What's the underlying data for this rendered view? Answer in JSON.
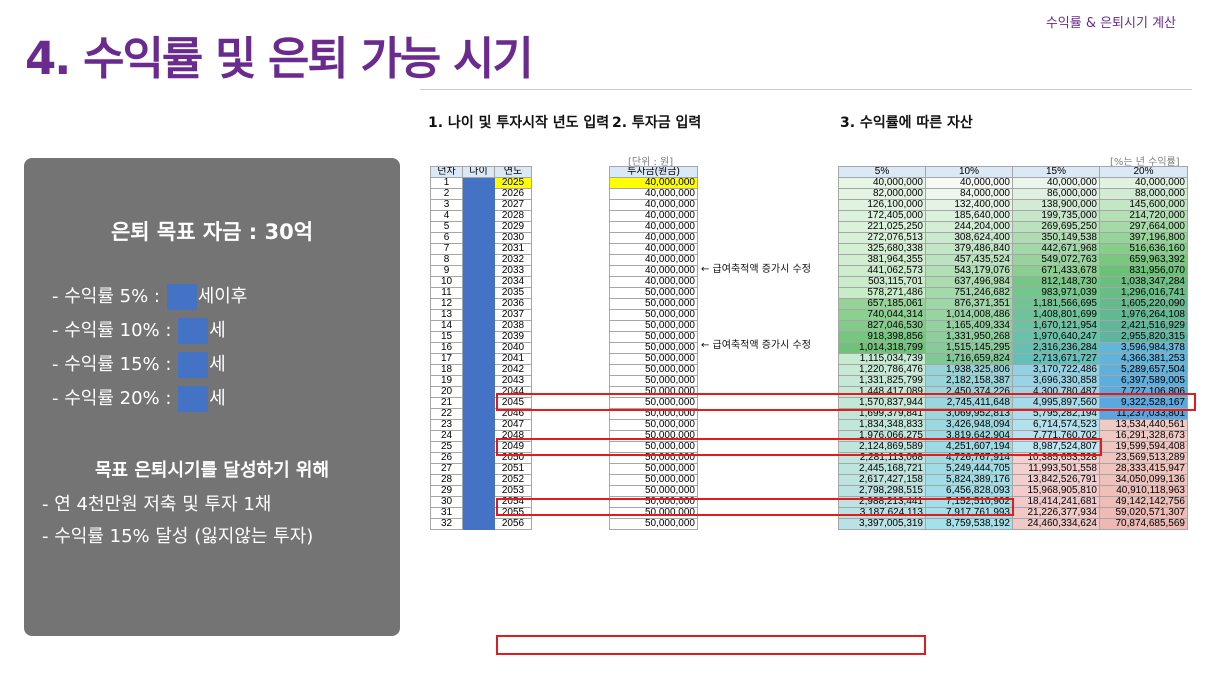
{
  "header": {
    "title": "4. 수익률 및 은퇴 가능 시기",
    "top_right": "수익률 & 은퇴시기 계산"
  },
  "panel": {
    "goal": "은퇴 목표 자금 : 30억",
    "rates": [
      {
        "prefix": "- 수익률  5% : ",
        "suffix": "세이후"
      },
      {
        "prefix": "- 수익률 10% : ",
        "suffix": "세"
      },
      {
        "prefix": "- 수익률 15% : ",
        "suffix": "세"
      },
      {
        "prefix": "- 수익률 20% : ",
        "suffix": "세"
      }
    ],
    "subtitle": "목표 은퇴시기를 달성하기 위해",
    "bullets": [
      "- 연 4천만원 저축 및 투자 1채",
      "- 수익률 15% 달성 (잃지않는 투자)"
    ]
  },
  "sections": {
    "s1": "1. 나이 및 투자시작 년도 입력",
    "s2": "2. 투자금 입력",
    "s3": "3. 수익률에 따른 자산"
  },
  "units": {
    "won": "[단위 : 원]",
    "rate": "[%는 년 수익률]"
  },
  "notes": [
    "← 급여축적액 증가시 수정",
    "← 급여축적액 증가시 수정"
  ],
  "table": {
    "headers_left": [
      "년차",
      "나이",
      "연도"
    ],
    "header_invest": "투자금(원금)",
    "headers_rates": [
      "5%",
      "10%",
      "15%",
      "20%"
    ],
    "rows": [
      [
        1,
        2025,
        "40,000,000",
        "40,000,000",
        "40,000,000",
        "40,000,000",
        "40,000,000"
      ],
      [
        2,
        2026,
        "40,000,000",
        "82,000,000",
        "84,000,000",
        "86,000,000",
        "88,000,000"
      ],
      [
        3,
        2027,
        "40,000,000",
        "126,100,000",
        "132,400,000",
        "138,900,000",
        "145,600,000"
      ],
      [
        4,
        2028,
        "40,000,000",
        "172,405,000",
        "185,640,000",
        "199,735,000",
        "214,720,000"
      ],
      [
        5,
        2029,
        "40,000,000",
        "221,025,250",
        "244,204,000",
        "269,695,250",
        "297,664,000"
      ],
      [
        6,
        2030,
        "40,000,000",
        "272,076,513",
        "308,624,400",
        "350,149,538",
        "397,196,800"
      ],
      [
        7,
        2031,
        "40,000,000",
        "325,680,338",
        "379,486,840",
        "442,671,968",
        "516,636,160"
      ],
      [
        8,
        2032,
        "40,000,000",
        "381,964,355",
        "457,435,524",
        "549,072,763",
        "659,963,392"
      ],
      [
        9,
        2033,
        "40,000,000",
        "441,062,573",
        "543,179,076",
        "671,433,678",
        "831,956,070"
      ],
      [
        10,
        2034,
        "40,000,000",
        "503,115,701",
        "637,496,984",
        "812,148,730",
        "1,038,347,284"
      ],
      [
        11,
        2035,
        "50,000,000",
        "578,271,486",
        "751,246,682",
        "983,971,039",
        "1,296,016,741"
      ],
      [
        12,
        2036,
        "50,000,000",
        "657,185,061",
        "876,371,351",
        "1,181,566,695",
        "1,605,220,090"
      ],
      [
        13,
        2037,
        "50,000,000",
        "740,044,314",
        "1,014,008,486",
        "1,408,801,699",
        "1,976,264,108"
      ],
      [
        14,
        2038,
        "50,000,000",
        "827,046,530",
        "1,165,409,334",
        "1,670,121,954",
        "2,421,516,929"
      ],
      [
        15,
        2039,
        "50,000,000",
        "918,398,856",
        "1,331,950,268",
        "1,970,640,247",
        "2,955,820,315"
      ],
      [
        16,
        2040,
        "50,000,000",
        "1,014,318,799",
        "1,515,145,295",
        "2,316,236,284",
        "3,596,984,378"
      ],
      [
        17,
        2041,
        "50,000,000",
        "1,115,034,739",
        "1,716,659,824",
        "2,713,671,727",
        "4,366,381,253"
      ],
      [
        18,
        2042,
        "50,000,000",
        "1,220,786,476",
        "1,938,325,806",
        "3,170,722,486",
        "5,289,657,504"
      ],
      [
        19,
        2043,
        "50,000,000",
        "1,331,825,799",
        "2,182,158,387",
        "3,696,330,858",
        "6,397,589,005"
      ],
      [
        20,
        2044,
        "50,000,000",
        "1,448,417,089",
        "2,450,374,226",
        "4,300,780,487",
        "7,727,106,806"
      ],
      [
        21,
        2045,
        "50,000,000",
        "1,570,837,944",
        "2,745,411,648",
        "4,995,897,560",
        "9,322,528,167"
      ],
      [
        22,
        2046,
        "50,000,000",
        "1,699,379,841",
        "3,069,952,813",
        "5,795,282,194",
        "11,237,033,801"
      ],
      [
        23,
        2047,
        "50,000,000",
        "1,834,348,833",
        "3,426,948,094",
        "6,714,574,523",
        "13,534,440,561"
      ],
      [
        24,
        2048,
        "50,000,000",
        "1,976,066,275",
        "3,819,642,904",
        "7,771,760,702",
        "16,291,328,673"
      ],
      [
        25,
        2049,
        "50,000,000",
        "2,124,869,589",
        "4,251,607,194",
        "8,987,524,807",
        "19,599,594,408"
      ],
      [
        26,
        2050,
        "50,000,000",
        "2,281,113,068",
        "4,726,767,914",
        "10,385,653,528",
        "23,569,513,289"
      ],
      [
        27,
        2051,
        "50,000,000",
        "2,445,168,721",
        "5,249,444,705",
        "11,993,501,558",
        "28,333,415,947"
      ],
      [
        28,
        2052,
        "50,000,000",
        "2,617,427,158",
        "5,824,389,176",
        "13,842,526,791",
        "34,050,099,136"
      ],
      [
        29,
        2053,
        "50,000,000",
        "2,798,298,515",
        "6,456,828,093",
        "15,968,905,810",
        "40,910,118,963"
      ],
      [
        30,
        2054,
        "50,000,000",
        "2,988,213,441",
        "7,152,510,902",
        "18,414,241,681",
        "49,142,142,756"
      ],
      [
        31,
        2055,
        "50,000,000",
        "3,187,624,113",
        "7,917,761,993",
        "21,226,377,934",
        "59,020,571,307"
      ],
      [
        32,
        2056,
        "50,000,000",
        "3,397,005,319",
        "8,759,538,192",
        "24,460,334,624",
        "70,874,685,569"
      ]
    ]
  }
}
